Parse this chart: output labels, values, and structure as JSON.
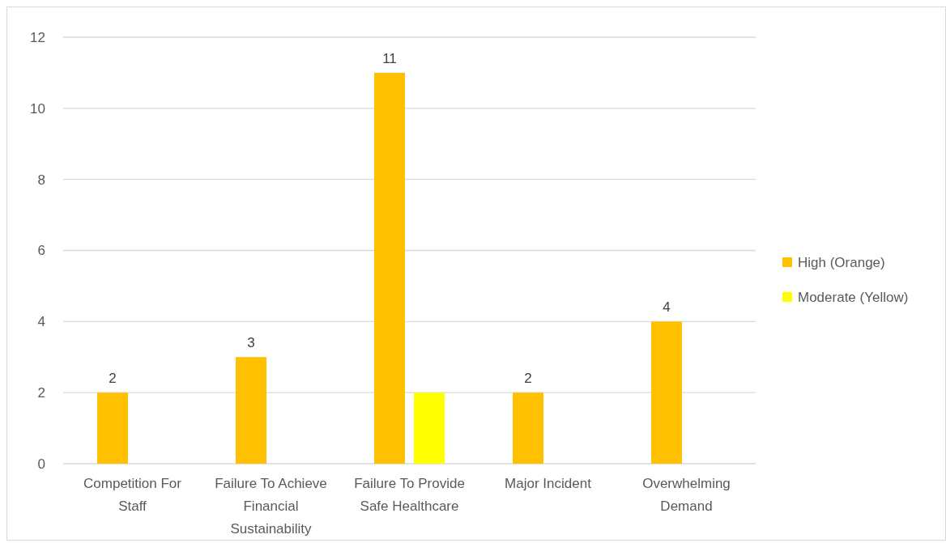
{
  "chart_data": {
    "type": "bar",
    "categories": [
      "Competition For Staff",
      "Failure To Achieve Financial Sustainability",
      "Failure To Provide Safe Healthcare",
      "Major Incident",
      "Overwhelming Demand"
    ],
    "series": [
      {
        "name": "High (Orange)",
        "color": "#ffc000",
        "values": [
          2,
          3,
          11,
          2,
          4
        ],
        "value_labels": [
          "2",
          "3",
          "11",
          "2",
          "4"
        ]
      },
      {
        "name": "Moderate (Yellow)",
        "color": "#ffff00",
        "values": [
          null,
          null,
          2,
          null,
          null
        ],
        "value_labels": [
          null,
          null,
          null,
          null,
          null
        ]
      }
    ],
    "ylim": [
      0,
      12
    ],
    "yticks": [
      0,
      2,
      4,
      6,
      8,
      10,
      12
    ],
    "grid": "y",
    "legend": "right"
  }
}
